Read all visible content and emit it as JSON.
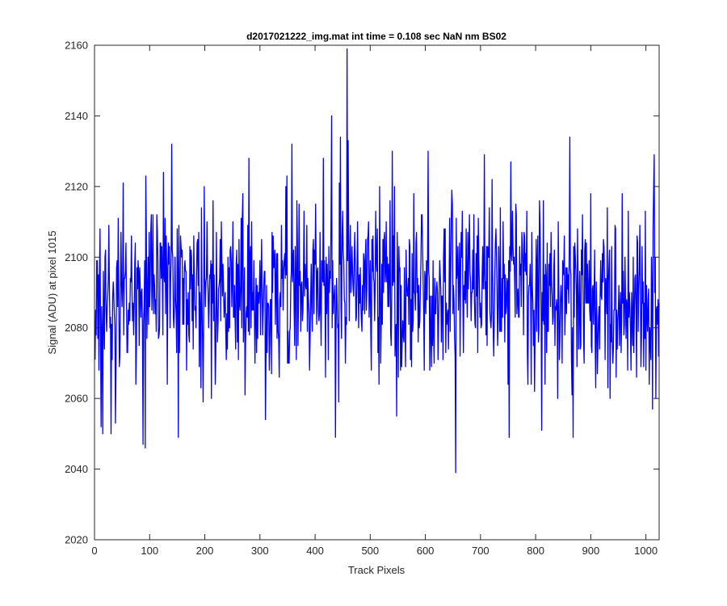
{
  "chart_data": {
    "type": "line",
    "title": "d2017021222_img.mat int time = 0.108 sec  NaN nm BS02",
    "xlabel": "Track Pixels",
    "ylabel": "Signal (ADU) at pixel 1015",
    "xlim": [
      0,
      1024
    ],
    "ylim": [
      2020,
      2160
    ],
    "xticks": [
      0,
      100,
      200,
      300,
      400,
      500,
      600,
      700,
      800,
      900,
      1000
    ],
    "yticks": [
      2020,
      2040,
      2060,
      2080,
      2100,
      2120,
      2140,
      2160
    ],
    "grid": false,
    "legend": "none",
    "series": [
      {
        "name": "",
        "color": "#0000ff",
        "x_start": 1,
        "x_step": 1,
        "n_points": 1024,
        "mean": 2090,
        "noise_amplitude": 12,
        "min": 2039,
        "max": 2159,
        "notable_points": [
          {
            "x": 8,
            "y": 2068
          },
          {
            "x": 12,
            "y": 2052
          },
          {
            "x": 15,
            "y": 2050
          },
          {
            "x": 30,
            "y": 2050
          },
          {
            "x": 52,
            "y": 2121
          },
          {
            "x": 88,
            "y": 2047
          },
          {
            "x": 92,
            "y": 2046
          },
          {
            "x": 93,
            "y": 2123
          },
          {
            "x": 125,
            "y": 2124
          },
          {
            "x": 140,
            "y": 2132
          },
          {
            "x": 152,
            "y": 2049
          },
          {
            "x": 280,
            "y": 2128
          },
          {
            "x": 310,
            "y": 2054
          },
          {
            "x": 358,
            "y": 2132
          },
          {
            "x": 415,
            "y": 2128
          },
          {
            "x": 430,
            "y": 2140
          },
          {
            "x": 437,
            "y": 2049
          },
          {
            "x": 446,
            "y": 2134
          },
          {
            "x": 458,
            "y": 2159
          },
          {
            "x": 460,
            "y": 2133
          },
          {
            "x": 540,
            "y": 2130
          },
          {
            "x": 605,
            "y": 2130
          },
          {
            "x": 655,
            "y": 2039
          },
          {
            "x": 707,
            "y": 2129
          },
          {
            "x": 755,
            "y": 2127
          },
          {
            "x": 862,
            "y": 2134
          },
          {
            "x": 868,
            "y": 2049
          },
          {
            "x": 1012,
            "y": 2057
          },
          {
            "x": 1015,
            "y": 2129
          },
          {
            "x": 1018,
            "y": 2060
          }
        ]
      }
    ]
  }
}
